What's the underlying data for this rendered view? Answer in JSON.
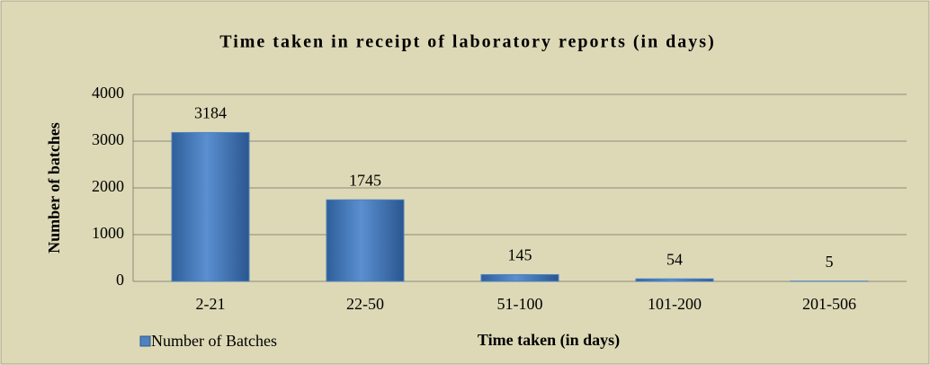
{
  "chart_data": {
    "type": "bar",
    "title": "Time taken in receipt of laboratory reports (in days)",
    "x_label": "Time taken (in days)",
    "y_label": "Number of batches",
    "categories": [
      "2-21",
      "22-50",
      "51-100",
      "101-200",
      "201-506"
    ],
    "series": [
      {
        "name": "Number of Batches",
        "color": "#4f81bd",
        "values": [
          3184,
          1745,
          145,
          54,
          5
        ]
      }
    ],
    "ylim": [
      0,
      4000
    ],
    "yticks": [
      0,
      1000,
      2000,
      3000,
      4000
    ],
    "grid": true,
    "legend": "bottom-left"
  }
}
